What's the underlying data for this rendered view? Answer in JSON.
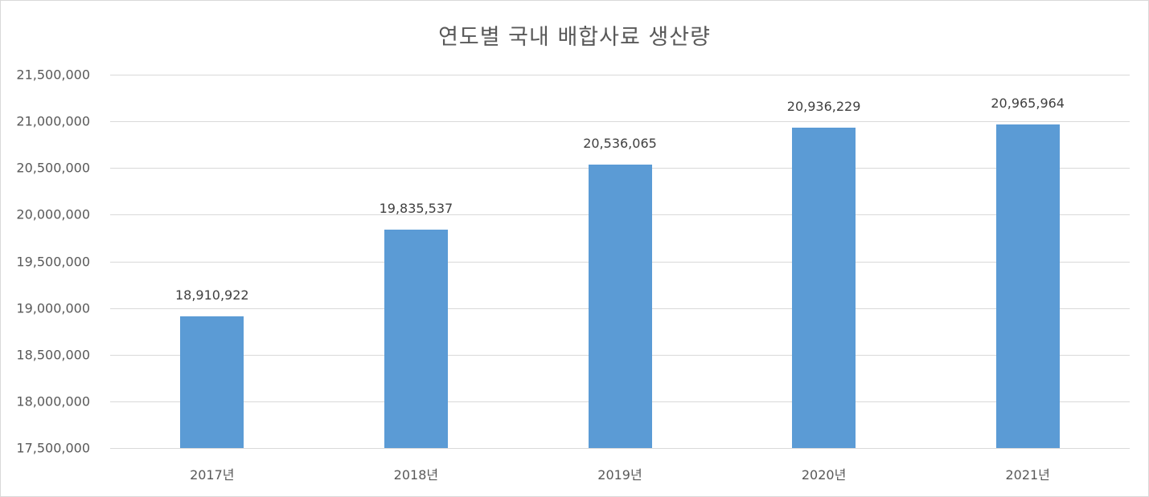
{
  "chart_data": {
    "type": "bar",
    "title": "연도별 국내 배합사료 생산량",
    "categories": [
      "2017년",
      "2018년",
      "2019년",
      "2020년",
      "2021년"
    ],
    "values": [
      18910922,
      19835537,
      20536065,
      20936229,
      20965964
    ],
    "value_labels": [
      "18,910,922",
      "19,835,537",
      "20,536,065",
      "20,936,229",
      "20,965,964"
    ],
    "xlabel": "",
    "ylabel": "",
    "ylim": [
      17500000,
      21500000
    ],
    "yticks": [
      17500000,
      18000000,
      18500000,
      19000000,
      19500000,
      20000000,
      20500000,
      21000000,
      21500000
    ],
    "ytick_labels": [
      "17,500,000",
      "18,000,000",
      "18,500,000",
      "19,000,000",
      "19,500,000",
      "20,000,000",
      "20,500,000",
      "21,000,000",
      "21,500,000"
    ],
    "grid": true,
    "legend": null,
    "bar_color": "#5B9BD5"
  }
}
